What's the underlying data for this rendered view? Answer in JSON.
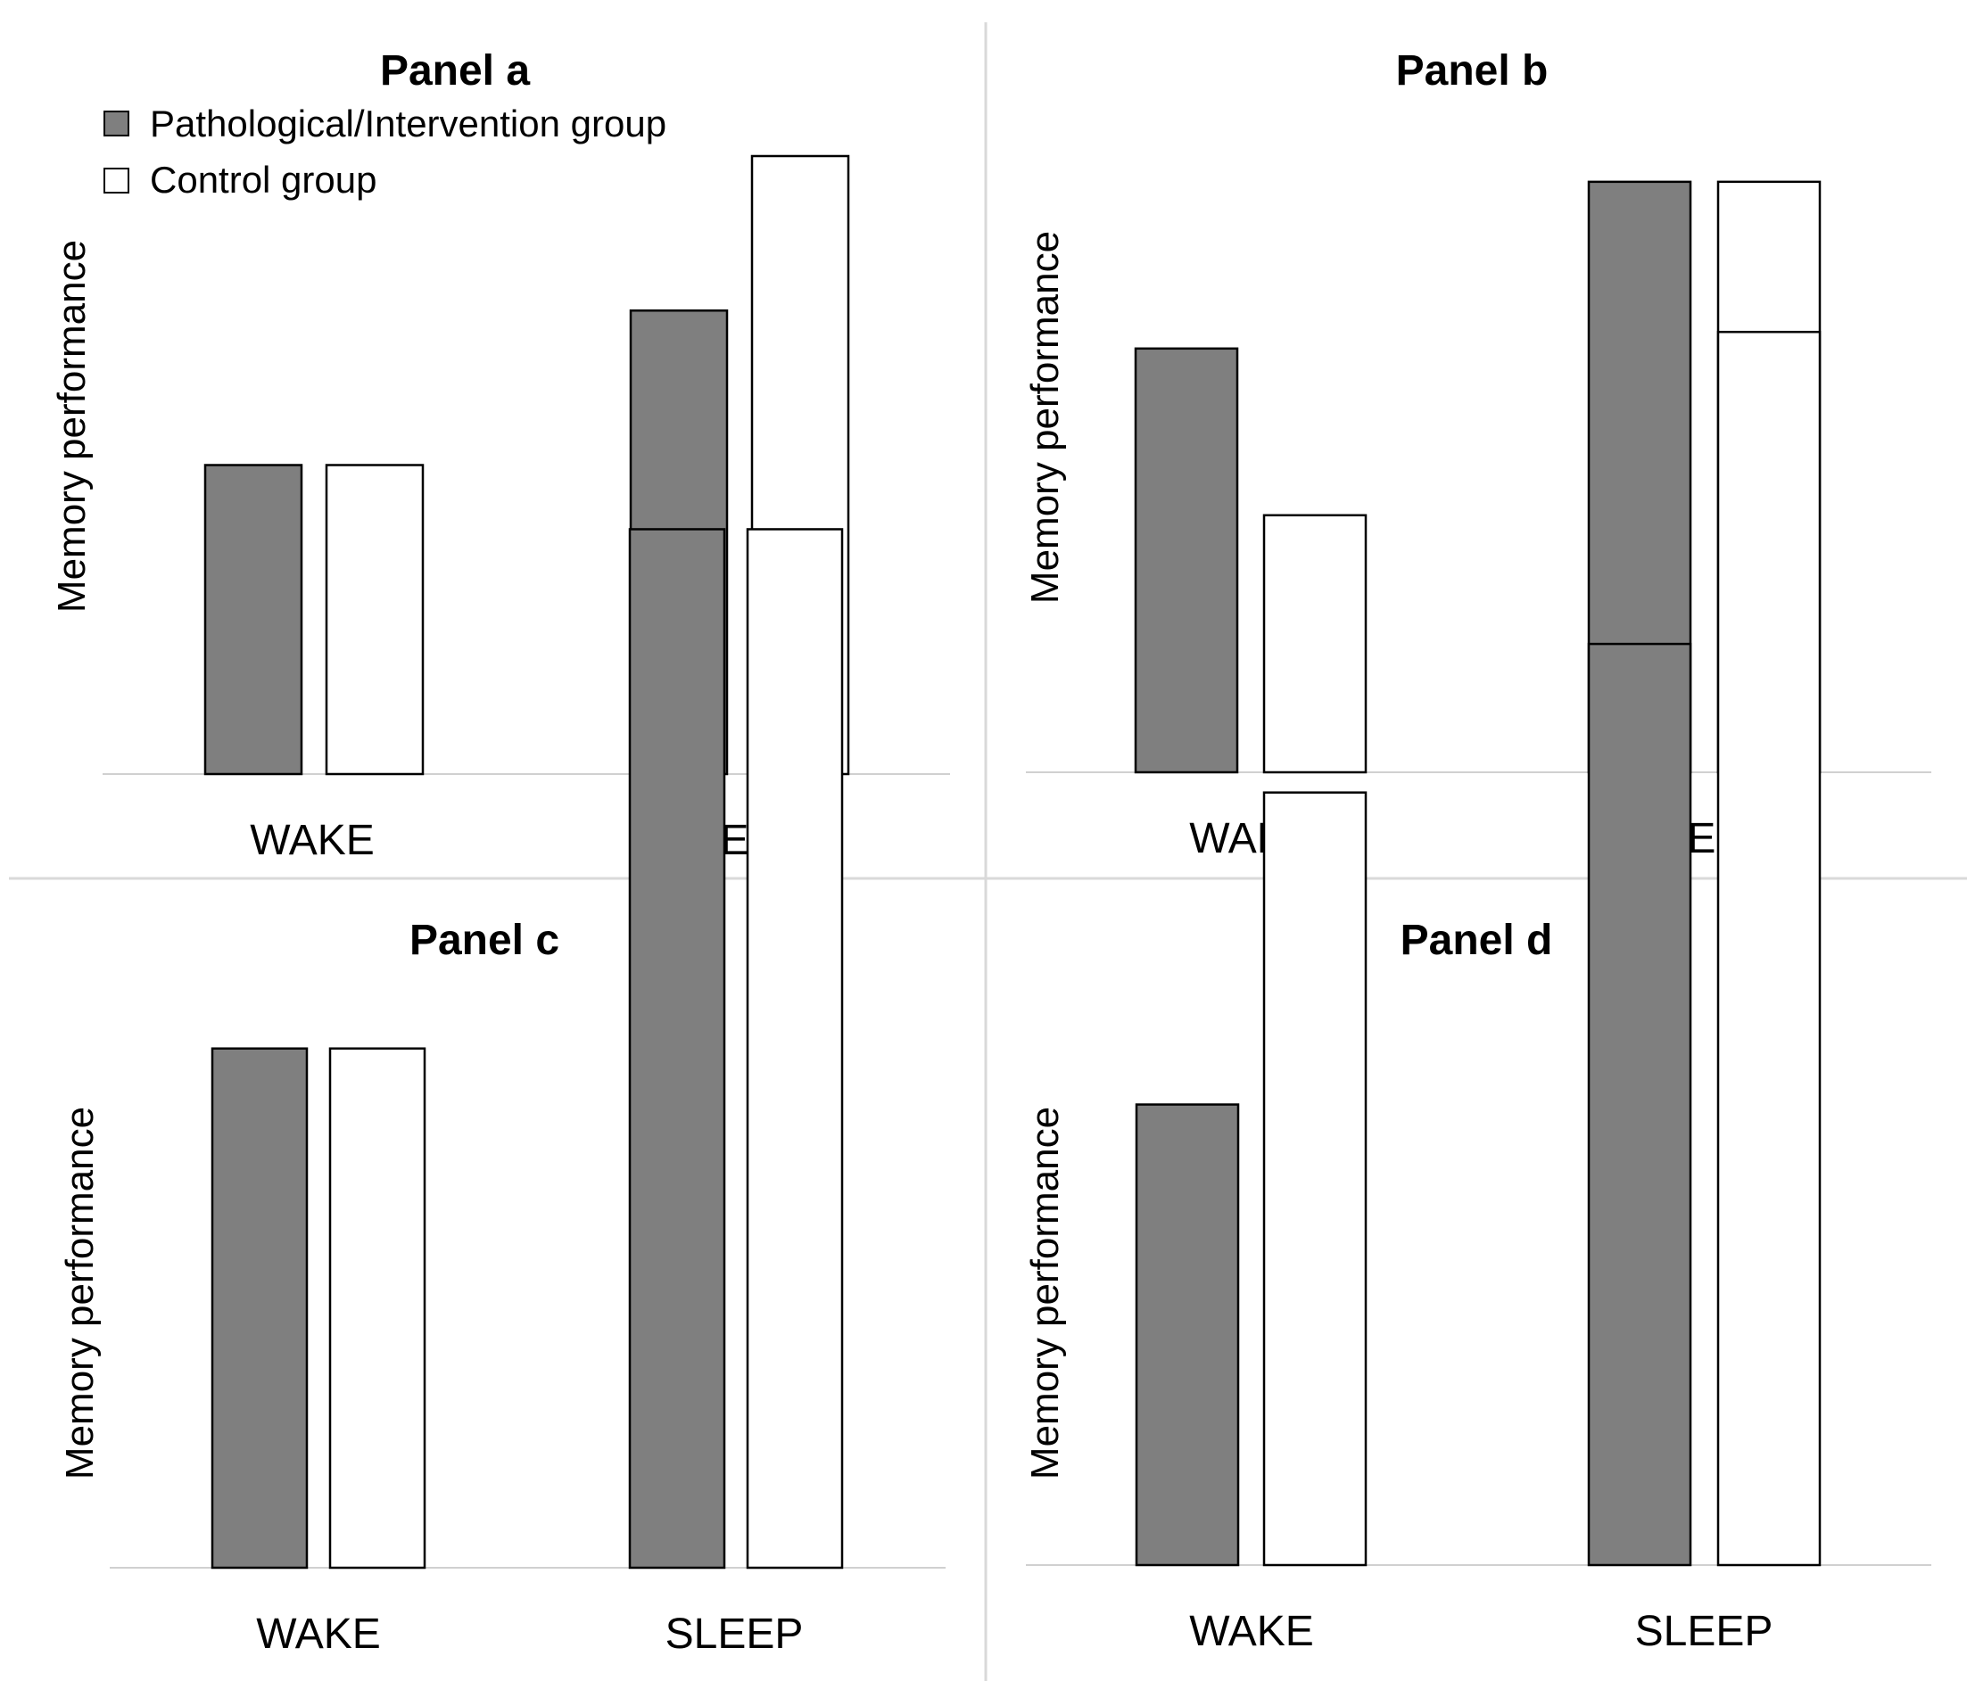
{
  "colors": {
    "pathological": "#7f7f7f",
    "control": "#ffffff",
    "divider": "#d9d9d9",
    "baseline": "#d0d0d0"
  },
  "legend": {
    "pathological": "Pathological/Intervention group",
    "control": "Control group"
  },
  "chart_data": [
    {
      "type": "bar",
      "title": "Panel a",
      "ylabel": "Memory performance",
      "xlabel": "",
      "categories": [
        "WAKE",
        "SLEEP"
      ],
      "ylim": [
        0,
        100
      ],
      "series": [
        {
          "name": "Pathological/Intervention group",
          "values": [
            50,
            75
          ]
        },
        {
          "name": "Control group",
          "values": [
            50,
            100
          ]
        }
      ]
    },
    {
      "type": "bar",
      "title": "Panel b",
      "ylabel": "Memory performance",
      "xlabel": "",
      "categories": [
        "WAKE",
        "SLEEP"
      ],
      "ylim": [
        0,
        100
      ],
      "series": [
        {
          "name": "Pathological/Intervention group",
          "values": [
            61,
            85
          ]
        },
        {
          "name": "Control group",
          "values": [
            37,
            85
          ]
        }
      ]
    },
    {
      "type": "bar",
      "title": "Panel c",
      "ylabel": "Memory performance",
      "xlabel": "",
      "categories": [
        "WAKE",
        "SLEEP"
      ],
      "ylim": [
        0,
        100
      ],
      "series": [
        {
          "name": "Pathological/Intervention group",
          "values": [
            39,
            78
          ]
        },
        {
          "name": "Control group",
          "values": [
            39,
            78
          ]
        }
      ]
    },
    {
      "type": "bar",
      "title": "Panel d",
      "ylabel": "Memory performance",
      "xlabel": "",
      "categories": [
        "WAKE",
        "SLEEP"
      ],
      "ylim": [
        0,
        100
      ],
      "series": [
        {
          "name": "Pathological/Intervention group",
          "values": [
            31,
            62
          ]
        },
        {
          "name": "Control group",
          "values": [
            52,
            83
          ]
        }
      ]
    }
  ]
}
